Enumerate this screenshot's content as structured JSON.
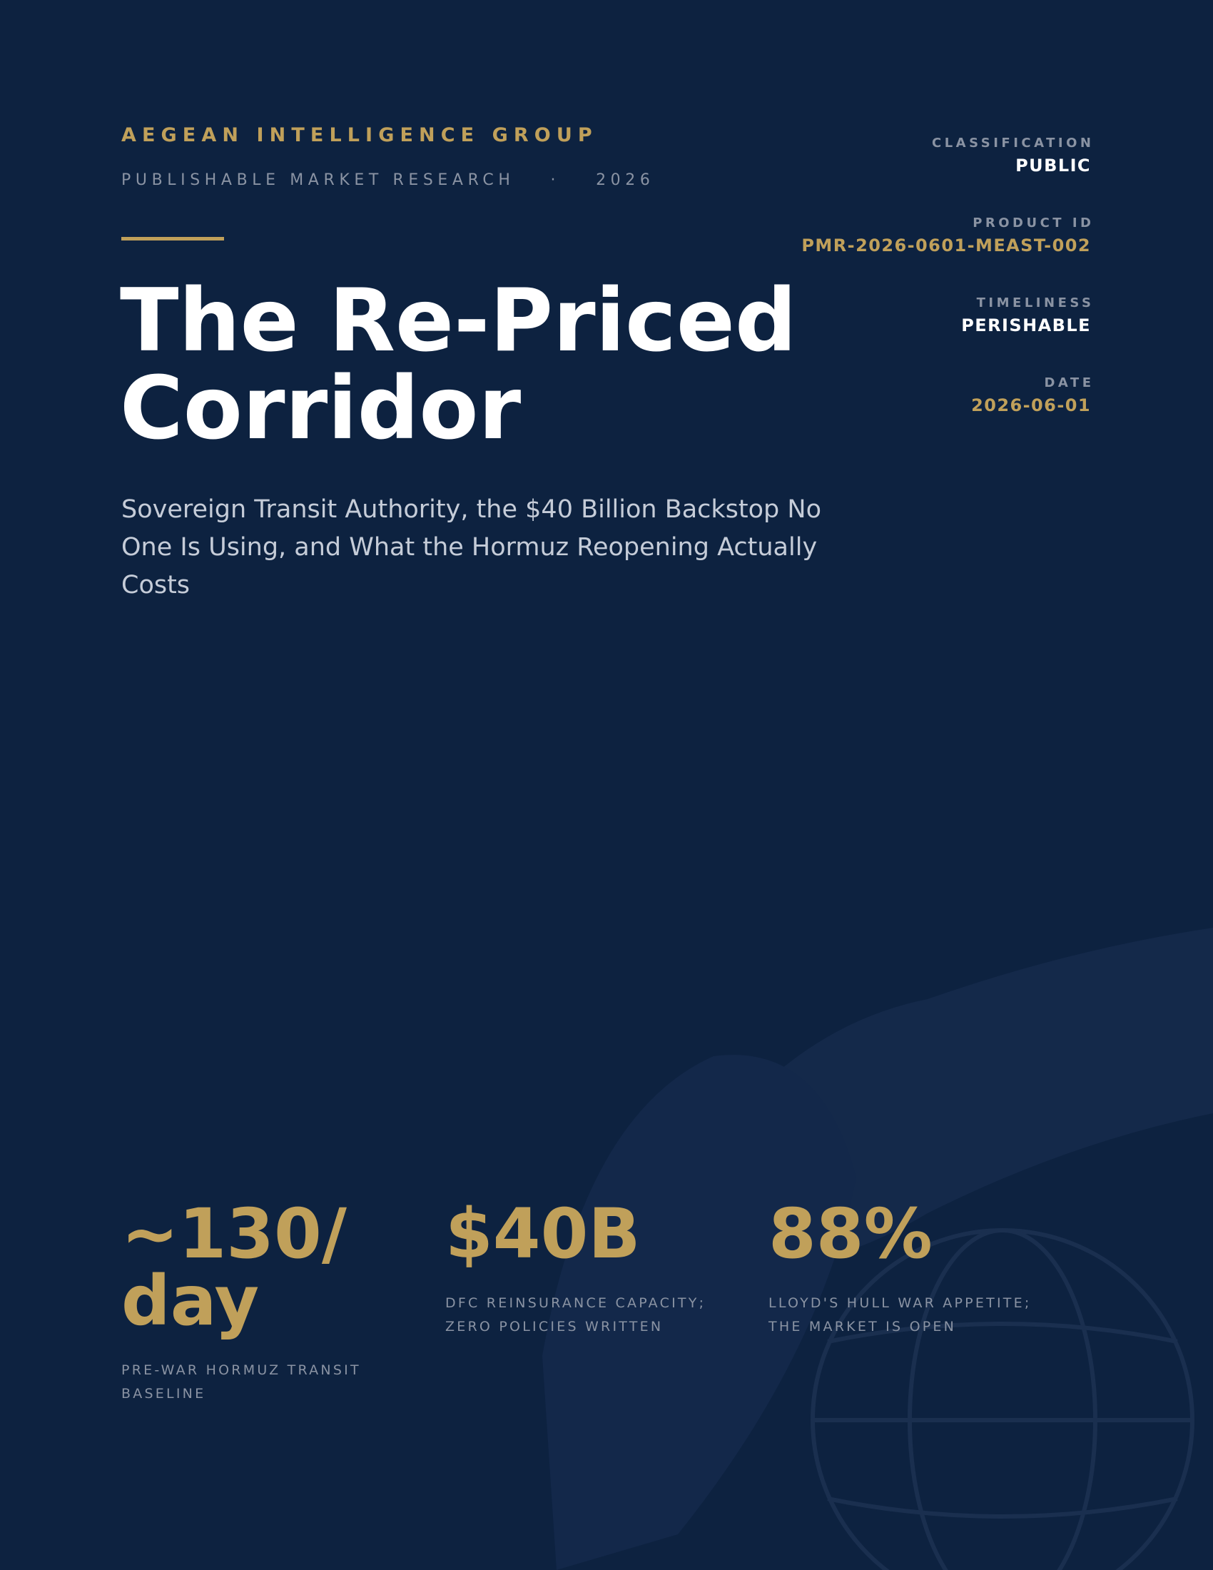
{
  "header": {
    "org": "AEGEAN INTELLIGENCE GROUP",
    "series": "PUBLISHABLE MARKET RESEARCH",
    "year": "2026"
  },
  "title": {
    "lines": [
      "The Re-Priced",
      "Corridor"
    ],
    "subtitle": "Sovereign Transit Authority, the $40 Billion Backstop No One Is Using, and What the Hormuz Reopening Actually Costs"
  },
  "meta": [
    {
      "label": "CLASSIFICATION",
      "value": "PUBLIC"
    },
    {
      "label": "PRODUCT ID",
      "value": "PMR-2026-0601-MEAST-002"
    },
    {
      "label": "TIMELINESS",
      "value": "PERISHABLE"
    },
    {
      "label": "DATE",
      "value": "2026-06-01"
    }
  ],
  "stats": [
    {
      "value": "~130/day",
      "label": "PRE-WAR HORMUZ TRANSIT BASELINE"
    },
    {
      "value": "$40B",
      "label": "DFC REINSURANCE CAPACITY; ZERO POLICIES WRITTEN"
    },
    {
      "value": "88%",
      "label": "LLOYD'S HULL WAR APPETITE; THE MARKET IS OPEN"
    }
  ]
}
